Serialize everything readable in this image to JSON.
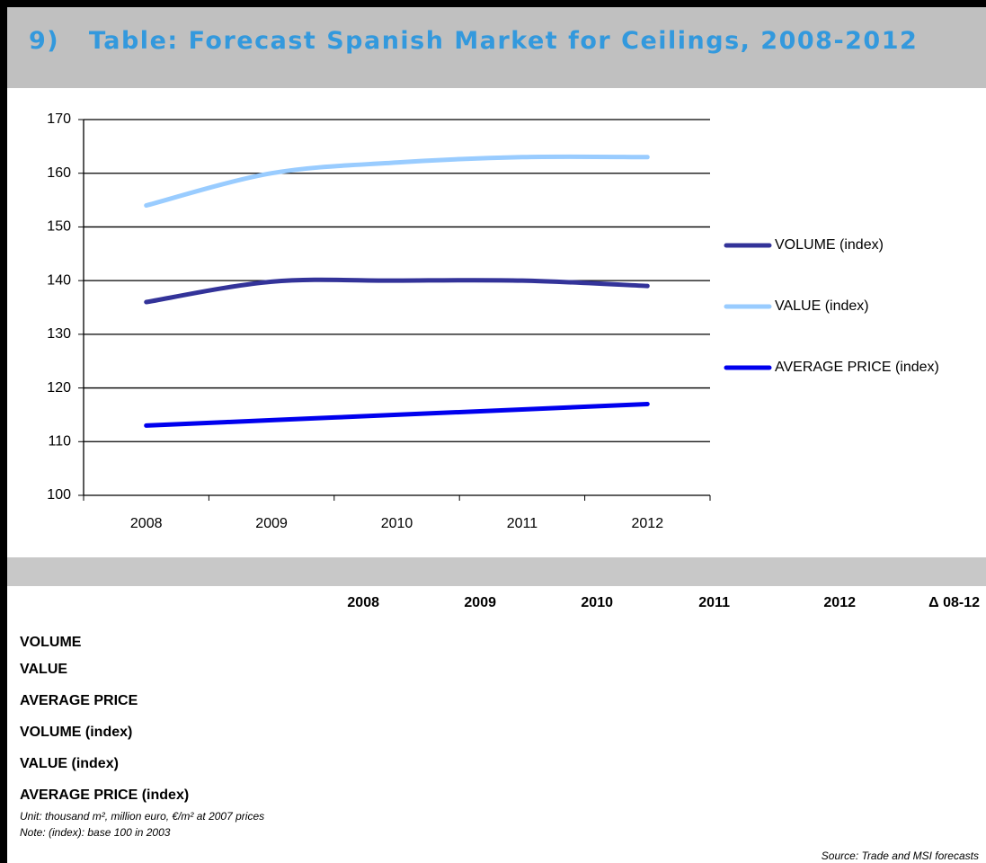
{
  "header": {
    "title": "9)   Table: Forecast Spanish Market for Ceilings, 2008-2012"
  },
  "chart_data": {
    "type": "line",
    "categories": [
      "2008",
      "2009",
      "2010",
      "2011",
      "2012"
    ],
    "series": [
      {
        "name": "VOLUME (index)",
        "color": "#333399",
        "values": [
          136,
          139.8,
          140,
          140,
          139
        ]
      },
      {
        "name": "VALUE (index)",
        "color": "#99ccff",
        "values": [
          154,
          160,
          162,
          163,
          163
        ]
      },
      {
        "name": "AVERAGE PRICE (index)",
        "color": "#0000ee",
        "values": [
          113,
          114,
          115,
          116,
          117
        ]
      }
    ],
    "ylim": [
      100,
      170
    ],
    "yticks": [
      100,
      110,
      120,
      130,
      140,
      150,
      160,
      170
    ],
    "grid": true,
    "legend": "right"
  },
  "table": {
    "columns": [
      "2008",
      "2009",
      "2010",
      "2011",
      "2012",
      "Δ 08-12"
    ],
    "row_labels": [
      "VOLUME",
      "VALUE",
      "AVERAGE PRICE",
      "VOLUME (index)",
      "VALUE (index)",
      "AVERAGE PRICE (index)"
    ]
  },
  "notes": [
    "Unit: thousand m², million euro, €/m² at 2007 prices",
    "Note: (index): base 100 in 2003"
  ],
  "source": "Source: Trade and MSI forecasts"
}
